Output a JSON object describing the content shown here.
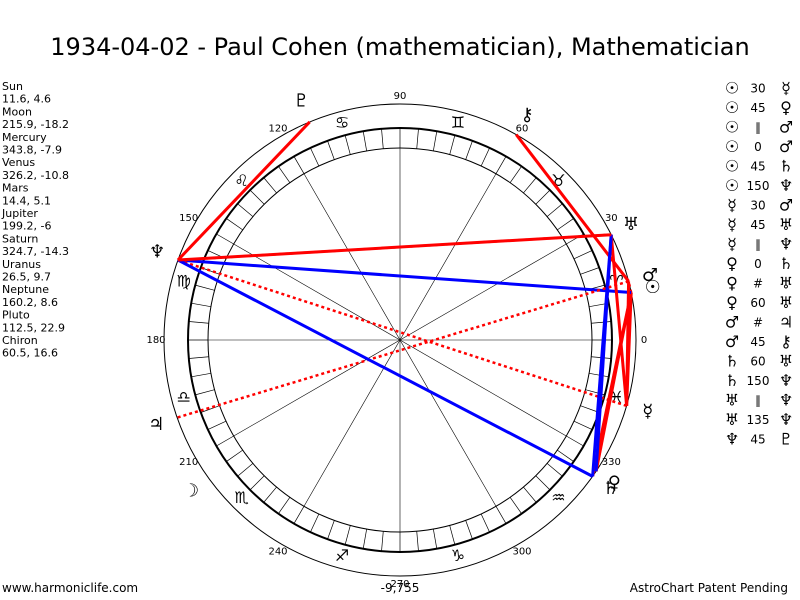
{
  "title": "1934-04-02 - Paul Cohen (mathematician), Mathematician",
  "planets": [
    {
      "name": "Sun",
      "glyph": "☉",
      "lon": 11.6,
      "lat": 4.6
    },
    {
      "name": "Moon",
      "glyph": "☽",
      "lon": 215.9,
      "lat": -18.2
    },
    {
      "name": "Mercury",
      "glyph": "☿",
      "lon": 343.8,
      "lat": -7.9
    },
    {
      "name": "Venus",
      "glyph": "♀",
      "lon": 326.2,
      "lat": -10.8
    },
    {
      "name": "Mars",
      "glyph": "♂",
      "lon": 14.4,
      "lat": 5.1
    },
    {
      "name": "Jupiter",
      "glyph": "♃",
      "lon": 199.2,
      "lat": -6.0
    },
    {
      "name": "Saturn",
      "glyph": "♄",
      "lon": 324.7,
      "lat": -14.3
    },
    {
      "name": "Uranus",
      "glyph": "♅",
      "lon": 26.5,
      "lat": 9.7
    },
    {
      "name": "Neptune",
      "glyph": "♆",
      "lon": 160.2,
      "lat": 8.6
    },
    {
      "name": "Pluto",
      "glyph": "♇",
      "lon": 112.5,
      "lat": 22.9
    },
    {
      "name": "Chiron",
      "glyph": "⚷",
      "lon": 60.5,
      "lat": 16.6
    }
  ],
  "signs": [
    "♈",
    "♉",
    "♊",
    "♋",
    "♌",
    "♍",
    "♎",
    "♏",
    "♐",
    "♑",
    "♒",
    "♓"
  ],
  "degree_labels": [
    0,
    30,
    60,
    90,
    120,
    150,
    180,
    210,
    240,
    270,
    300,
    330
  ],
  "aspects": [
    {
      "p1": "☉",
      "aspect": 30,
      "p2": "☿",
      "color": "#ff0000"
    },
    {
      "p1": "☉",
      "aspect": 45,
      "p2": "♀",
      "color": "#ff0000"
    },
    {
      "p1": "☉",
      "aspect": "∥",
      "p2": "♂",
      "color": "#ff0000",
      "dashed": true
    },
    {
      "p1": "☉",
      "aspect": 0,
      "p2": "♂",
      "color": "#0000ff"
    },
    {
      "p1": "☉",
      "aspect": 45,
      "p2": "♄",
      "color": "#ff0000"
    },
    {
      "p1": "☉",
      "aspect": 150,
      "p2": "♆",
      "color": "#0000ff"
    },
    {
      "p1": "☿",
      "aspect": 30,
      "p2": "♂",
      "color": "#ff0000"
    },
    {
      "p1": "☿",
      "aspect": 45,
      "p2": "♅",
      "color": "#ff0000"
    },
    {
      "p1": "☿",
      "aspect": "∥",
      "p2": "♆",
      "color": "#ff0000",
      "dashed": true
    },
    {
      "p1": "♀",
      "aspect": 0,
      "p2": "♄",
      "color": "#0000ff"
    },
    {
      "p1": "♀",
      "aspect": "#",
      "p2": "♅",
      "color": "#ff0000",
      "dashed": true
    },
    {
      "p1": "♀",
      "aspect": 60,
      "p2": "♅",
      "color": "#0000ff"
    },
    {
      "p1": "♂",
      "aspect": "#",
      "p2": "♃",
      "color": "#ff0000",
      "dashed": true
    },
    {
      "p1": "♂",
      "aspect": 45,
      "p2": "⚷",
      "color": "#ff0000"
    },
    {
      "p1": "♄",
      "aspect": 60,
      "p2": "♅",
      "color": "#0000ff"
    },
    {
      "p1": "♄",
      "aspect": 150,
      "p2": "♆",
      "color": "#0000ff"
    },
    {
      "p1": "♅",
      "aspect": "∥",
      "p2": "♆",
      "color": "#ff0000",
      "dashed": true
    },
    {
      "p1": "♅",
      "aspect": 135,
      "p2": "♆",
      "color": "#ff0000"
    },
    {
      "p1": "♆",
      "aspect": 45,
      "p2": "♇",
      "color": "#ff0000"
    }
  ],
  "footer_left": "www.harmoniclife.com",
  "footer_center": "-9,755",
  "footer_right": "AstroChart Patent Pending"
}
